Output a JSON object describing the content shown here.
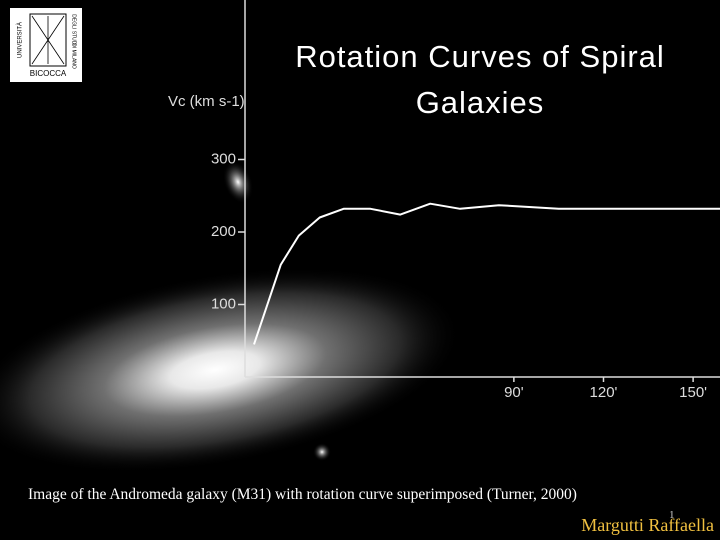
{
  "chart_data": {
    "type": "line",
    "title": "Rotation Curves of Spiral Galaxies",
    "y_label": "Vc (km s-1)",
    "x": [
      3,
      12,
      18,
      25,
      33,
      42,
      52,
      62,
      72,
      85,
      105,
      159
    ],
    "series": [
      {
        "name": "Andromeda (M31)",
        "color": "#ffffff",
        "values": [
          45,
          155,
          195,
          220,
          232,
          232,
          224,
          239,
          232,
          237,
          232,
          232
        ]
      }
    ],
    "xlim": [
      0,
      159
    ],
    "ylim": [
      0,
      520
    ],
    "xticks": [
      {
        "value": 90,
        "label": "90'"
      },
      {
        "value": 120,
        "label": "120'"
      },
      {
        "value": 150,
        "label": "150'"
      }
    ],
    "yticks": [
      100,
      200,
      300
    ]
  },
  "logo": [
    "UNIVERSITÀ",
    "DEGLI STUDI",
    "DI MILANO",
    "BICOCCA"
  ],
  "caption": "Image of the Andromeda galaxy (M31) with rotation curve superimposed (Turner, 2000)",
  "author": "Margutti Raffaella",
  "page_number": "1"
}
